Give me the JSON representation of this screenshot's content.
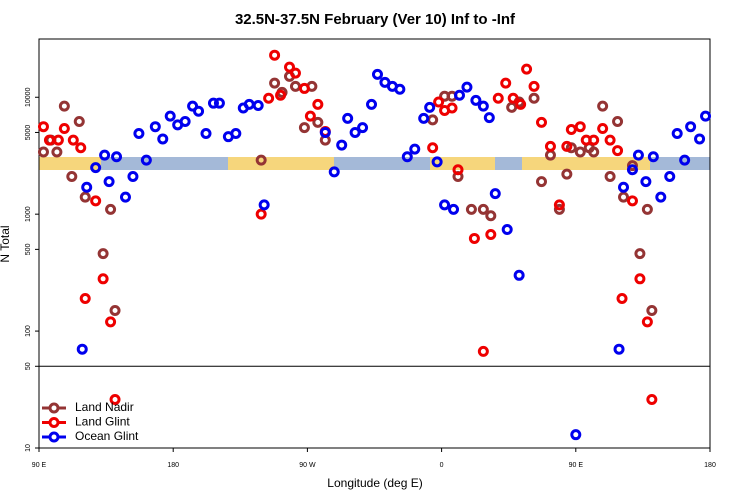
{
  "chart_data": {
    "type": "scatter",
    "title": "32.5N-37.5N February (Ver 10)   Inf to -Inf",
    "xlabel": "Longitude (deg E)",
    "ylabel": "N Total",
    "xlim": [
      90,
      540
    ],
    "xticks": [
      {
        "value": 90,
        "label": "90 E"
      },
      180,
      {
        "value": 270,
        "label": "90 W"
      },
      {
        "value": 360,
        "label": "0"
      },
      {
        "value": 450,
        "label": "90 E"
      },
      {
        "value": 540,
        "label": "180"
      }
    ],
    "ylim": [
      10,
      31500
    ],
    "yscale": "log",
    "yticks": [
      10,
      50,
      100,
      500,
      1000,
      5000,
      10000
    ],
    "panel_break": 50,
    "legend": "lower left",
    "series": [
      {
        "name": "Land Nadir",
        "color": "#943434",
        "x": [
          93,
          98,
          102,
          107,
          112,
          117,
          121,
          133,
          138,
          141,
          239,
          248,
          253,
          258,
          262,
          268,
          273,
          277,
          282,
          354,
          362,
          367,
          371,
          380,
          388,
          393,
          407,
          412,
          422,
          427,
          433,
          439,
          444,
          447,
          453,
          459,
          462,
          468,
          473,
          478,
          482,
          488,
          493,
          498,
          501
        ],
        "values": [
          3400,
          4300,
          3400,
          8400,
          2100,
          6200,
          1400,
          460,
          1100,
          150,
          2900,
          13200,
          11000,
          15100,
          12400,
          5500,
          12400,
          6100,
          4300,
          6400,
          10200,
          10200,
          2100,
          1100,
          1100,
          970,
          8200,
          9100,
          9800,
          1900,
          3200,
          1100,
          2200,
          3700,
          3400,
          3700,
          3400,
          8400,
          2100,
          6200,
          1400,
          2600,
          460,
          1100,
          150
        ]
      },
      {
        "name": "Land Glint",
        "color": "#ee0000",
        "x": [
          93,
          97,
          103,
          107,
          113,
          118,
          121,
          128,
          133,
          138,
          141,
          239,
          244,
          248,
          252,
          258,
          262,
          268,
          272,
          277,
          282,
          354,
          358,
          362,
          367,
          371,
          382,
          388,
          393,
          398,
          403,
          408,
          413,
          417,
          422,
          427,
          433,
          439,
          444,
          447,
          453,
          457,
          462,
          468,
          473,
          478,
          481,
          488,
          493,
          498,
          501
        ],
        "values": [
          5600,
          4300,
          4300,
          5400,
          4300,
          3700,
          190,
          1300,
          280,
          120,
          26,
          1000,
          9800,
          22900,
          10400,
          18100,
          16100,
          11900,
          6900,
          8700,
          5100,
          3700,
          9100,
          7700,
          8100,
          2400,
          620,
          67,
          670,
          9800,
          13200,
          9800,
          8700,
          17400,
          12400,
          6100,
          3800,
          1200,
          3800,
          5300,
          5600,
          4300,
          4300,
          5400,
          4300,
          3500,
          190,
          1300,
          280,
          120,
          26
        ]
      },
      {
        "name": "Ocean Glint",
        "color": "#0000ee",
        "x": [
          119,
          122,
          128,
          134,
          137,
          142,
          148,
          153,
          157,
          162,
          168,
          173,
          178,
          183,
          188,
          193,
          197,
          202,
          207,
          211,
          217,
          222,
          227,
          231,
          237,
          241,
          282,
          288,
          293,
          297,
          302,
          307,
          313,
          317,
          322,
          327,
          332,
          337,
          342,
          348,
          352,
          357,
          362,
          368,
          372,
          377,
          383,
          388,
          392,
          396,
          404,
          412,
          450,
          479,
          482,
          488,
          492,
          497,
          502,
          507,
          513,
          518,
          523,
          527,
          533,
          537
        ],
        "values": [
          70,
          1700,
          2500,
          3200,
          1900,
          3100,
          1400,
          2100,
          4900,
          2900,
          5600,
          4400,
          6900,
          5800,
          6200,
          8400,
          7600,
          4900,
          8900,
          8900,
          4600,
          4900,
          8100,
          8700,
          8500,
          1200,
          5000,
          2300,
          3900,
          6600,
          5000,
          5500,
          8700,
          15700,
          13400,
          12400,
          11700,
          3100,
          3600,
          6600,
          8200,
          2800,
          1200,
          1100,
          10400,
          12200,
          9400,
          8400,
          6700,
          1500,
          740,
          300,
          13,
          70,
          1700,
          2400,
          3200,
          1900,
          3100,
          1400,
          2100,
          4900,
          2900,
          5600,
          4400,
          6900
        ]
      }
    ]
  }
}
